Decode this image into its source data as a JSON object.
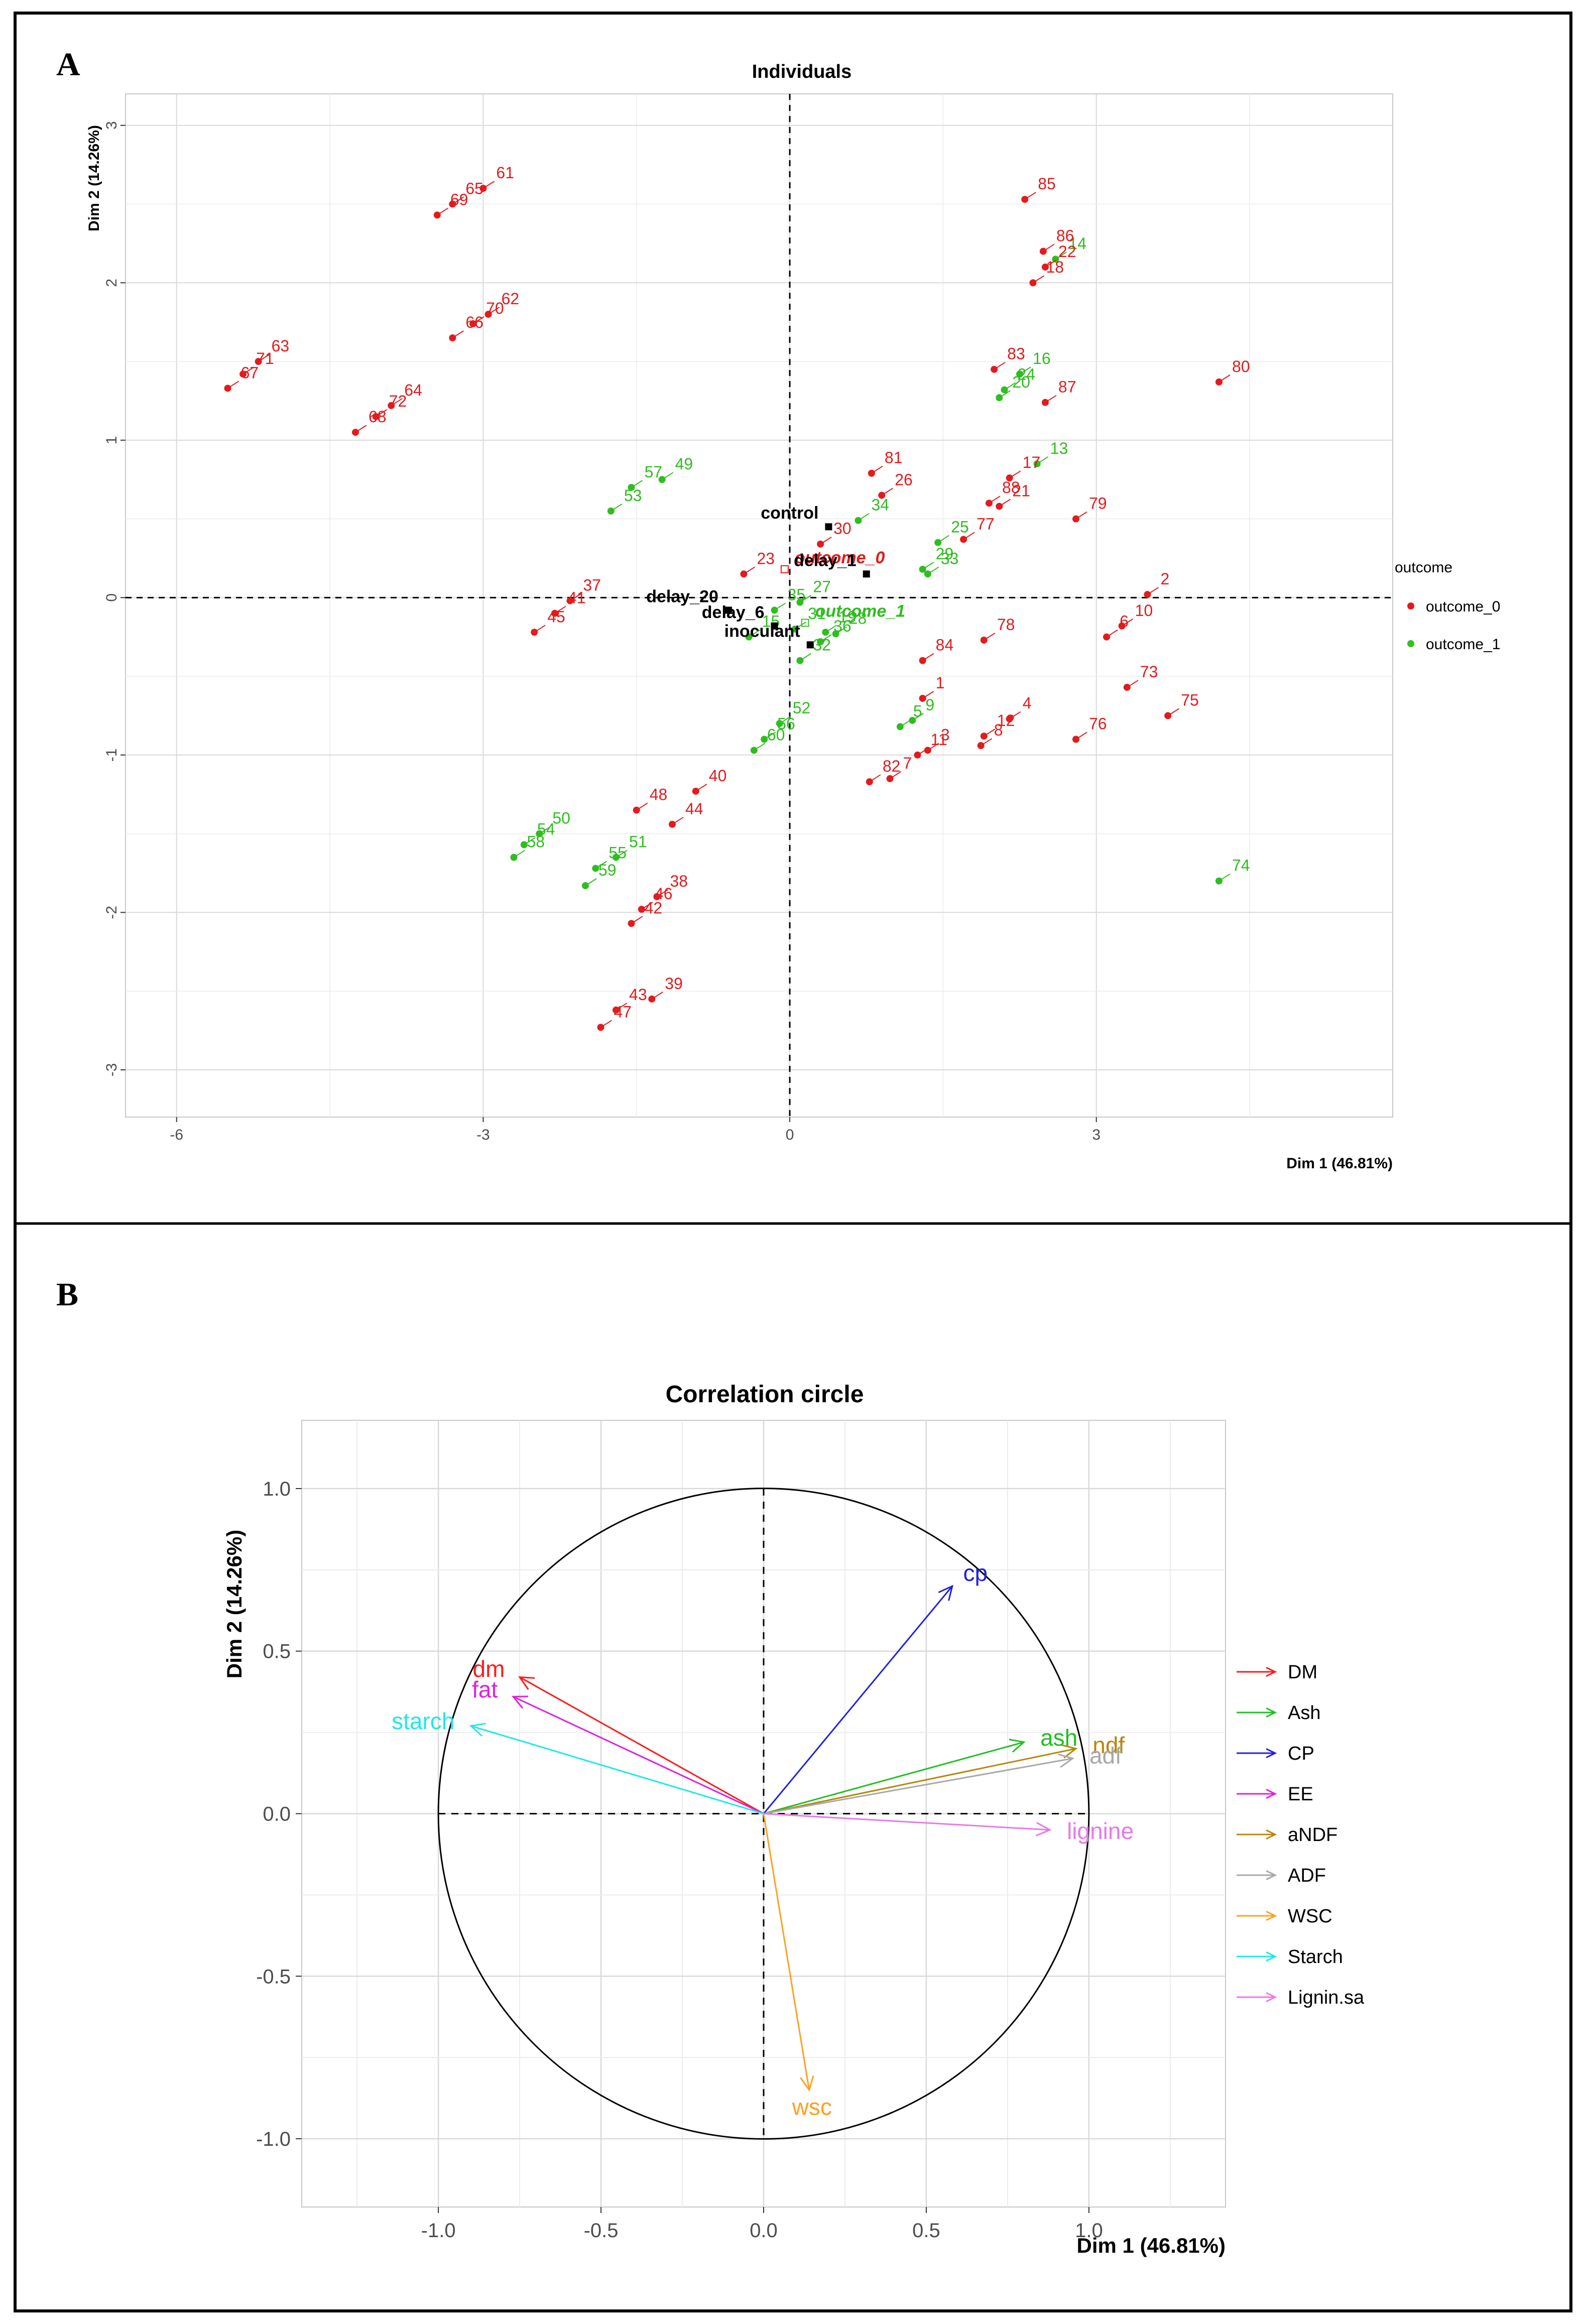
{
  "panels": {
    "a_label": "A",
    "b_label": "B"
  },
  "chart_data": [
    {
      "type": "scatter",
      "title": "Individuals",
      "xlabel": "Dim 1 (46.81%)",
      "ylabel": "Dim 2 (14.26%)",
      "xlim": [
        -6.5,
        5.9
      ],
      "ylim": [
        -3.3,
        3.2
      ],
      "xticks": [
        -6,
        -3,
        0,
        3
      ],
      "yticks": [
        -3,
        -2,
        -1,
        0,
        1,
        2,
        3
      ],
      "legend": {
        "title": "outcome",
        "position": "right",
        "entries": [
          {
            "name": "outcome_0",
            "color": "#e41a1c"
          },
          {
            "name": "outcome_1",
            "color": "#33c020"
          }
        ]
      },
      "colors": {
        "0": "#e41a1c",
        "1": "#2fbd1f"
      },
      "points": [
        {
          "id": "1",
          "x": 1.3,
          "y": -0.64,
          "g": 0
        },
        {
          "id": "2",
          "x": 3.5,
          "y": 0.02,
          "g": 0
        },
        {
          "id": "3",
          "x": 1.35,
          "y": -0.97,
          "g": 0
        },
        {
          "id": "4",
          "x": 2.15,
          "y": -0.77,
          "g": 0
        },
        {
          "id": "5",
          "x": 1.08,
          "y": -0.82,
          "g": 1
        },
        {
          "id": "6",
          "x": 3.1,
          "y": -0.25,
          "g": 0
        },
        {
          "id": "7",
          "x": 0.98,
          "y": -1.15,
          "g": 0
        },
        {
          "id": "8",
          "x": 1.87,
          "y": -0.94,
          "g": 0
        },
        {
          "id": "9",
          "x": 1.2,
          "y": -0.78,
          "g": 1
        },
        {
          "id": "10",
          "x": 3.25,
          "y": -0.18,
          "g": 0
        },
        {
          "id": "11",
          "x": 1.25,
          "y": -1.0,
          "g": 0
        },
        {
          "id": "12",
          "x": 1.9,
          "y": -0.88,
          "g": 0
        },
        {
          "id": "13",
          "x": 2.42,
          "y": 0.85,
          "g": 1
        },
        {
          "id": "14",
          "x": 2.6,
          "y": 2.15,
          "g": 1
        },
        {
          "id": "15",
          "x": -0.4,
          "y": -0.25,
          "g": 1
        },
        {
          "id": "16",
          "x": 2.25,
          "y": 1.42,
          "g": 1
        },
        {
          "id": "17",
          "x": 2.15,
          "y": 0.76,
          "g": 0
        },
        {
          "id": "18",
          "x": 2.38,
          "y": 2.0,
          "g": 0
        },
        {
          "id": "19",
          "x": 0.35,
          "y": -0.22,
          "g": 1
        },
        {
          "id": "20",
          "x": 2.05,
          "y": 1.27,
          "g": 1
        },
        {
          "id": "21",
          "x": 2.05,
          "y": 0.58,
          "g": 0
        },
        {
          "id": "22",
          "x": 2.5,
          "y": 2.1,
          "g": 0
        },
        {
          "id": "23",
          "x": -0.45,
          "y": 0.15,
          "g": 0
        },
        {
          "id": "24",
          "x": 2.1,
          "y": 1.32,
          "g": 1
        },
        {
          "id": "25",
          "x": 1.45,
          "y": 0.35,
          "g": 1
        },
        {
          "id": "26",
          "x": 0.9,
          "y": 0.65,
          "g": 0
        },
        {
          "id": "27",
          "x": 0.1,
          "y": -0.03,
          "g": 1
        },
        {
          "id": "28",
          "x": 0.45,
          "y": -0.23,
          "g": 1
        },
        {
          "id": "29",
          "x": 1.3,
          "y": 0.18,
          "g": 1
        },
        {
          "id": "30",
          "x": 0.3,
          "y": 0.34,
          "g": 0
        },
        {
          "id": "31",
          "x": 0.05,
          "y": -0.2,
          "g": 1
        },
        {
          "id": "32",
          "x": 0.1,
          "y": -0.4,
          "g": 1
        },
        {
          "id": "33",
          "x": 1.35,
          "y": 0.15,
          "g": 1
        },
        {
          "id": "34",
          "x": 0.67,
          "y": 0.49,
          "g": 1
        },
        {
          "id": "35",
          "x": -0.15,
          "y": -0.08,
          "g": 1
        },
        {
          "id": "36",
          "x": 0.3,
          "y": -0.28,
          "g": 1
        },
        {
          "id": "37",
          "x": -2.15,
          "y": -0.02,
          "g": 0
        },
        {
          "id": "38",
          "x": -1.3,
          "y": -1.9,
          "g": 0
        },
        {
          "id": "39",
          "x": -1.35,
          "y": -2.55,
          "g": 0
        },
        {
          "id": "40",
          "x": -0.92,
          "y": -1.23,
          "g": 0
        },
        {
          "id": "41",
          "x": -2.3,
          "y": -0.1,
          "g": 0
        },
        {
          "id": "42",
          "x": -1.55,
          "y": -2.07,
          "g": 0
        },
        {
          "id": "43",
          "x": -1.7,
          "y": -2.62,
          "g": 0
        },
        {
          "id": "44",
          "x": -1.15,
          "y": -1.44,
          "g": 0
        },
        {
          "id": "45",
          "x": -2.5,
          "y": -0.22,
          "g": 0
        },
        {
          "id": "46",
          "x": -1.45,
          "y": -1.98,
          "g": 0
        },
        {
          "id": "47",
          "x": -1.85,
          "y": -2.73,
          "g": 0
        },
        {
          "id": "48",
          "x": -1.5,
          "y": -1.35,
          "g": 0
        },
        {
          "id": "49",
          "x": -1.25,
          "y": 0.75,
          "g": 1
        },
        {
          "id": "50",
          "x": -2.45,
          "y": -1.5,
          "g": 1
        },
        {
          "id": "51",
          "x": -1.7,
          "y": -1.65,
          "g": 1
        },
        {
          "id": "52",
          "x": -0.1,
          "y": -0.8,
          "g": 1
        },
        {
          "id": "53",
          "x": -1.75,
          "y": 0.55,
          "g": 1
        },
        {
          "id": "54",
          "x": -2.6,
          "y": -1.57,
          "g": 1
        },
        {
          "id": "55",
          "x": -1.9,
          "y": -1.72,
          "g": 1
        },
        {
          "id": "56",
          "x": -0.25,
          "y": -0.9,
          "g": 1
        },
        {
          "id": "57",
          "x": -1.55,
          "y": 0.7,
          "g": 1
        },
        {
          "id": "58",
          "x": -2.7,
          "y": -1.65,
          "g": 1
        },
        {
          "id": "59",
          "x": -2.0,
          "y": -1.83,
          "g": 1
        },
        {
          "id": "60",
          "x": -0.35,
          "y": -0.97,
          "g": 1
        },
        {
          "id": "61",
          "x": -3.0,
          "y": 2.6,
          "g": 0
        },
        {
          "id": "62",
          "x": -2.95,
          "y": 1.8,
          "g": 0
        },
        {
          "id": "63",
          "x": -5.2,
          "y": 1.5,
          "g": 0
        },
        {
          "id": "64",
          "x": -3.9,
          "y": 1.22,
          "g": 0
        },
        {
          "id": "65",
          "x": -3.3,
          "y": 2.5,
          "g": 0
        },
        {
          "id": "66",
          "x": -3.3,
          "y": 1.65,
          "g": 0
        },
        {
          "id": "67",
          "x": -5.5,
          "y": 1.33,
          "g": 0
        },
        {
          "id": "68",
          "x": -4.25,
          "y": 1.05,
          "g": 0
        },
        {
          "id": "69",
          "x": -3.45,
          "y": 2.43,
          "g": 0
        },
        {
          "id": "70",
          "x": -3.1,
          "y": 1.74,
          "g": 0
        },
        {
          "id": "71",
          "x": -5.35,
          "y": 1.42,
          "g": 0
        },
        {
          "id": "72",
          "x": -4.05,
          "y": 1.15,
          "g": 0
        },
        {
          "id": "73",
          "x": 3.3,
          "y": -0.57,
          "g": 0
        },
        {
          "id": "74",
          "x": 4.2,
          "y": -1.8,
          "g": 1
        },
        {
          "id": "75",
          "x": 3.7,
          "y": -0.75,
          "g": 0
        },
        {
          "id": "76",
          "x": 2.8,
          "y": -0.9,
          "g": 0
        },
        {
          "id": "77",
          "x": 1.7,
          "y": 0.37,
          "g": 0
        },
        {
          "id": "78",
          "x": 1.9,
          "y": -0.27,
          "g": 0
        },
        {
          "id": "79",
          "x": 2.8,
          "y": 0.5,
          "g": 0
        },
        {
          "id": "80",
          "x": 4.2,
          "y": 1.37,
          "g": 0
        },
        {
          "id": "81",
          "x": 0.8,
          "y": 0.79,
          "g": 0
        },
        {
          "id": "82",
          "x": 0.78,
          "y": -1.17,
          "g": 0
        },
        {
          "id": "83",
          "x": 2.0,
          "y": 1.45,
          "g": 0
        },
        {
          "id": "84",
          "x": 1.3,
          "y": -0.4,
          "g": 0
        },
        {
          "id": "85",
          "x": 2.3,
          "y": 2.53,
          "g": 0
        },
        {
          "id": "86",
          "x": 2.48,
          "y": 2.2,
          "g": 0
        },
        {
          "id": "87",
          "x": 2.5,
          "y": 1.24,
          "g": 0
        },
        {
          "id": "88",
          "x": 1.95,
          "y": 0.6,
          "g": 0
        }
      ],
      "supplementary": [
        {
          "id": "control",
          "x": 0.38,
          "y": 0.45
        },
        {
          "id": "delay_1",
          "x": 0.75,
          "y": 0.15
        },
        {
          "id": "delay_20",
          "x": -0.6,
          "y": -0.08
        },
        {
          "id": "delay_6",
          "x": -0.15,
          "y": -0.18
        },
        {
          "id": "inoculant",
          "x": 0.2,
          "y": -0.3
        }
      ],
      "group_centroids": [
        {
          "id": "outcome_0",
          "x": -0.05,
          "y": 0.18,
          "g": 0
        },
        {
          "id": "outcome_1",
          "x": 0.15,
          "y": -0.16,
          "g": 1
        }
      ]
    },
    {
      "type": "line",
      "title": "Correlation circle",
      "xlabel": "Dim 1 (46.81%)",
      "ylabel": "Dim 2 (14.26%)",
      "xlim": [
        -1.42,
        1.42
      ],
      "ylim": [
        -1.21,
        1.21
      ],
      "xticks": [
        -1.0,
        -0.5,
        0.0,
        0.5,
        1.0
      ],
      "xtick_labels": [
        "-1.0",
        "-0.5",
        "0.0",
        "0.5",
        "1.0"
      ],
      "yticks": [
        -1.0,
        -0.5,
        0.0,
        0.5,
        1.0
      ],
      "ytick_labels": [
        "-1.0",
        "-0.5",
        "0.0",
        "0.5",
        "1.0"
      ],
      "legend": {
        "position": "right"
      },
      "variables": [
        {
          "name": "dm",
          "legend": "DM",
          "x": -0.75,
          "y": 0.42,
          "color": "#ff1a1a"
        },
        {
          "name": "ash",
          "legend": "Ash",
          "x": 0.8,
          "y": 0.22,
          "color": "#20c020"
        },
        {
          "name": "cp",
          "legend": "CP",
          "x": 0.58,
          "y": 0.7,
          "color": "#2020e0"
        },
        {
          "name": "fat",
          "legend": "EE",
          "x": -0.77,
          "y": 0.36,
          "color": "#e020e0"
        },
        {
          "name": "ndf",
          "legend": "aNDF",
          "x": 0.96,
          "y": 0.2,
          "color": "#b8860b"
        },
        {
          "name": "adf",
          "legend": "ADF",
          "x": 0.95,
          "y": 0.17,
          "color": "#a8a8a8"
        },
        {
          "name": "wsc",
          "legend": "WSC",
          "x": 0.14,
          "y": -0.85,
          "color": "#ffa020"
        },
        {
          "name": "starch",
          "legend": "Starch",
          "x": -0.9,
          "y": 0.27,
          "color": "#20e8e8"
        },
        {
          "name": "lignine",
          "legend": "Lignin.sa",
          "x": 0.88,
          "y": -0.05,
          "color": "#e878e8"
        }
      ]
    }
  ]
}
